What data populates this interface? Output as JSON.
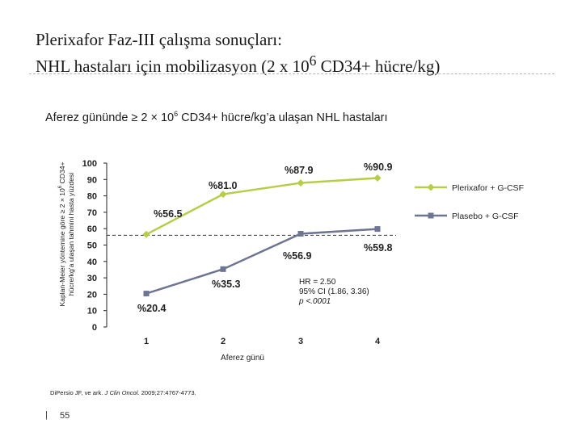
{
  "slide": {
    "title_line1": "Plerixafor Faz-III çalışma sonuçları:",
    "title_line2": "NHL hastaları için mobilizasyon (2 x 10",
    "title_sup": "6",
    "title_line2_tail": " CD34+ hücre/kg)",
    "subtitle_pre": "Aferez gününde ≥ 2 × 10",
    "subtitle_sup": "6",
    "subtitle_post": " CD34+ hücre/kg’a ulaşan NHL hastaları",
    "ylabel_line1_pre": "Kaplan-Meier yöntemine göre ≥ 2 × 10",
    "ylabel_sup": "6",
    "ylabel_line1_post": " CD34+",
    "ylabel_line2": "hücre/kg’a ulaşan tahmini hasta yüzdesi",
    "stats_line1": "HR = 2.50",
    "stats_line2": "95% CI (1.86, 3.36)",
    "stats_line3": "p <.0001",
    "source_authors": "DiPersio JF, ve ark. ",
    "source_journal": "J Clin Oncol.",
    "source_rest": " 2009;27:4767-4773.",
    "footer_bar": "|",
    "page_number": "55"
  },
  "chart_data": {
    "type": "line",
    "xlabel": "Aferez günü",
    "x": [
      1,
      2,
      3,
      4
    ],
    "x_ticks": [
      "1",
      "2",
      "3",
      "4"
    ],
    "ylim": [
      0,
      100
    ],
    "y_ticks": [
      "0",
      "10",
      "20",
      "30",
      "40",
      "50",
      "60",
      "70",
      "80",
      "90",
      "100"
    ],
    "reference_line_y": 56,
    "series": [
      {
        "name": "Plerixafor + G-CSF",
        "color": "#b8cc4a",
        "marker": "diamond",
        "values": [
          56.5,
          81.0,
          87.9,
          90.9
        ],
        "labels": [
          "%56.5",
          "%81.0",
          "%87.9",
          "%90.9"
        ]
      },
      {
        "name": "Plasebo + G-CSF",
        "color": "#6f7590",
        "marker": "square",
        "values": [
          20.4,
          35.3,
          56.9,
          59.8
        ],
        "labels": [
          "%20.4",
          "%35.3",
          "%56.9",
          "%59.8"
        ]
      }
    ],
    "legend_position": "right"
  }
}
